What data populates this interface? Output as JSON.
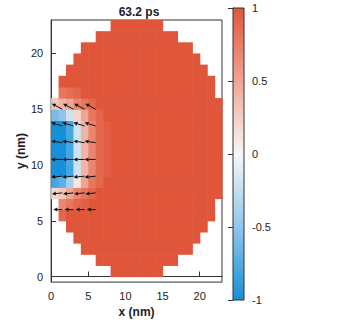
{
  "chart_data": {
    "type": "heatmap",
    "title": "63.2 ps",
    "x_label": "x (nm)",
    "y_label": "y (nm)",
    "xlim": [
      0,
      23
    ],
    "ylim": [
      -0.5,
      23
    ],
    "xticks": [
      0,
      5,
      10,
      15,
      20
    ],
    "yticks": [
      0,
      5,
      10,
      15,
      20
    ],
    "x": [
      0.5,
      1.5,
      2.5,
      3.5,
      4.5,
      5.5,
      6.5,
      7.5,
      8.5,
      9.5,
      10.5,
      11.5,
      12.5,
      13.5,
      14.5,
      15.5,
      16.5,
      17.5,
      18.5,
      19.5,
      20.5,
      21.5,
      22.5
    ],
    "y": [
      0.5,
      1.5,
      2.5,
      3.5,
      4.5,
      5.5,
      6.5,
      7.5,
      8.5,
      9.5,
      10.5,
      11.5,
      12.5,
      13.5,
      14.5,
      15.5,
      16.5,
      17.5,
      18.5,
      19.5,
      20.5,
      21.5,
      22.5
    ],
    "z": [
      [
        null,
        null,
        null,
        null,
        null,
        null,
        null,
        null,
        1,
        1,
        1,
        1,
        1,
        1,
        1,
        null,
        null,
        null,
        null,
        null,
        null,
        null,
        null
      ],
      [
        null,
        null,
        null,
        null,
        null,
        null,
        1,
        1,
        1,
        1,
        1,
        1,
        1,
        1,
        1,
        1,
        1,
        null,
        null,
        null,
        null,
        null,
        null
      ],
      [
        null,
        null,
        null,
        null,
        1,
        1,
        1,
        1,
        1,
        1,
        1,
        1,
        1,
        1,
        1,
        1,
        1,
        1,
        1,
        null,
        null,
        null,
        null
      ],
      [
        null,
        null,
        null,
        1,
        1,
        1,
        1,
        1,
        1,
        1,
        1,
        1,
        1,
        1,
        1,
        1,
        1,
        1,
        1,
        1,
        null,
        null,
        null
      ],
      [
        null,
        null,
        1,
        1,
        1,
        1,
        1,
        1,
        1,
        1,
        1,
        1,
        1,
        1,
        1,
        1,
        1,
        1,
        1,
        1,
        1,
        null,
        null
      ],
      [
        null,
        0.9,
        1,
        1,
        1,
        1,
        1,
        1,
        1,
        1,
        1,
        1,
        1,
        1,
        1,
        1,
        1,
        1,
        1,
        1,
        1,
        1,
        null
      ],
      [
        null,
        0.7,
        0.8,
        0.9,
        0.95,
        1,
        1,
        1,
        1,
        1,
        1,
        1,
        1,
        1,
        1,
        1,
        1,
        1,
        1,
        1,
        1,
        1,
        null
      ],
      [
        0.2,
        0.3,
        0.5,
        0.7,
        0.8,
        0.9,
        1,
        1,
        1,
        1,
        1,
        1,
        1,
        1,
        1,
        1,
        1,
        1,
        1,
        1,
        1,
        1,
        1
      ],
      [
        -0.8,
        -0.7,
        -0.4,
        0.1,
        0.5,
        0.8,
        0.9,
        1,
        1,
        1,
        1,
        1,
        1,
        1,
        1,
        1,
        1,
        1,
        1,
        1,
        1,
        1,
        1
      ],
      [
        -1,
        -1,
        -0.8,
        -0.2,
        0.4,
        0.7,
        0.9,
        0.95,
        1,
        1,
        1,
        1,
        1,
        1,
        1,
        1,
        1,
        1,
        1,
        1,
        1,
        1,
        1
      ],
      [
        -1,
        -1,
        -0.8,
        -0.2,
        0.4,
        0.7,
        0.9,
        0.95,
        1,
        1,
        1,
        1,
        1,
        1,
        1,
        1,
        1,
        1,
        1,
        1,
        1,
        1,
        1
      ],
      [
        -1,
        -1,
        -0.8,
        -0.2,
        0.4,
        0.7,
        0.9,
        0.95,
        1,
        1,
        1,
        1,
        1,
        1,
        1,
        1,
        1,
        1,
        1,
        1,
        1,
        1,
        1
      ],
      [
        -1,
        -1,
        -0.8,
        -0.2,
        0.4,
        0.7,
        0.9,
        0.95,
        1,
        1,
        1,
        1,
        1,
        1,
        1,
        1,
        1,
        1,
        1,
        1,
        1,
        1,
        1
      ],
      [
        -1,
        -1,
        -0.8,
        -0.2,
        0.4,
        0.7,
        0.9,
        0.95,
        1,
        1,
        1,
        1,
        1,
        1,
        1,
        1,
        1,
        1,
        1,
        1,
        1,
        1,
        1
      ],
      [
        -0.6,
        -0.5,
        -0.2,
        0.2,
        0.5,
        0.8,
        0.9,
        1,
        1,
        1,
        1,
        1,
        1,
        1,
        1,
        1,
        1,
        1,
        1,
        1,
        1,
        1,
        1
      ],
      [
        0.3,
        0.4,
        0.5,
        0.7,
        0.8,
        0.9,
        1,
        1,
        1,
        1,
        1,
        1,
        1,
        1,
        1,
        1,
        1,
        1,
        1,
        1,
        1,
        1,
        1
      ],
      [
        null,
        0.8,
        0.85,
        0.9,
        1,
        1,
        1,
        1,
        1,
        1,
        1,
        1,
        1,
        1,
        1,
        1,
        1,
        1,
        1,
        1,
        1,
        1,
        null
      ],
      [
        null,
        1,
        1,
        1,
        1,
        1,
        1,
        1,
        1,
        1,
        1,
        1,
        1,
        1,
        1,
        1,
        1,
        1,
        1,
        1,
        1,
        1,
        null
      ],
      [
        null,
        null,
        1,
        1,
        1,
        1,
        1,
        1,
        1,
        1,
        1,
        1,
        1,
        1,
        1,
        1,
        1,
        1,
        1,
        1,
        1,
        null,
        null
      ],
      [
        null,
        null,
        null,
        1,
        1,
        1,
        1,
        1,
        1,
        1,
        1,
        1,
        1,
        1,
        1,
        1,
        1,
        1,
        1,
        1,
        null,
        null,
        null
      ],
      [
        null,
        null,
        null,
        null,
        1,
        1,
        1,
        1,
        1,
        1,
        1,
        1,
        1,
        1,
        1,
        1,
        1,
        1,
        1,
        null,
        null,
        null,
        null
      ],
      [
        null,
        null,
        null,
        null,
        null,
        null,
        1,
        1,
        1,
        1,
        1,
        1,
        1,
        1,
        1,
        1,
        1,
        null,
        null,
        null,
        null,
        null,
        null
      ],
      [
        null,
        null,
        null,
        null,
        null,
        null,
        null,
        null,
        1,
        1,
        1,
        1,
        1,
        1,
        1,
        null,
        null,
        null,
        null,
        null,
        null,
        null,
        null
      ]
    ],
    "colorbar_range": [
      -1,
      1
    ],
    "colorbar_ticks": [
      -1,
      -0.5,
      0,
      0.5,
      1
    ],
    "arrows": {
      "x": [
        1.5,
        3,
        4.5,
        6,
        1.5,
        3,
        4.5,
        6,
        1.5,
        3,
        4.5,
        6,
        1.5,
        3,
        4.5,
        6,
        1.5,
        3,
        4.5,
        6,
        1.5,
        3,
        4.5,
        6,
        1.5,
        3,
        4.5,
        6
      ],
      "y": [
        6,
        6,
        6,
        6,
        7.5,
        7.5,
        7.5,
        7.5,
        9,
        9,
        9,
        9,
        10.5,
        10.5,
        10.5,
        10.5,
        12,
        12,
        12,
        12,
        13.5,
        13.5,
        13.5,
        13.5,
        15,
        15,
        15,
        15
      ],
      "u": [
        -1.2,
        -1.2,
        -1.2,
        -1.2,
        -1.4,
        -1.4,
        -1.4,
        -1.4,
        -1.5,
        -1.5,
        -1.5,
        -1.5,
        -1.5,
        -1.5,
        -1.5,
        -1.5,
        -1.5,
        -1.5,
        -1.5,
        -1.5,
        -1.5,
        -1.5,
        -1.5,
        -1.5,
        -1.4,
        -1.4,
        -1.4,
        -1.4
      ],
      "v": [
        0,
        0,
        0,
        0,
        -0.1,
        -0.1,
        -0.1,
        -0.1,
        -0.1,
        -0.1,
        -0.1,
        -0.1,
        0,
        0,
        0,
        0,
        0.15,
        0.15,
        0.15,
        0.15,
        0.3,
        0.3,
        0.3,
        0.3,
        0.5,
        0.5,
        0.5,
        0.5
      ]
    }
  }
}
